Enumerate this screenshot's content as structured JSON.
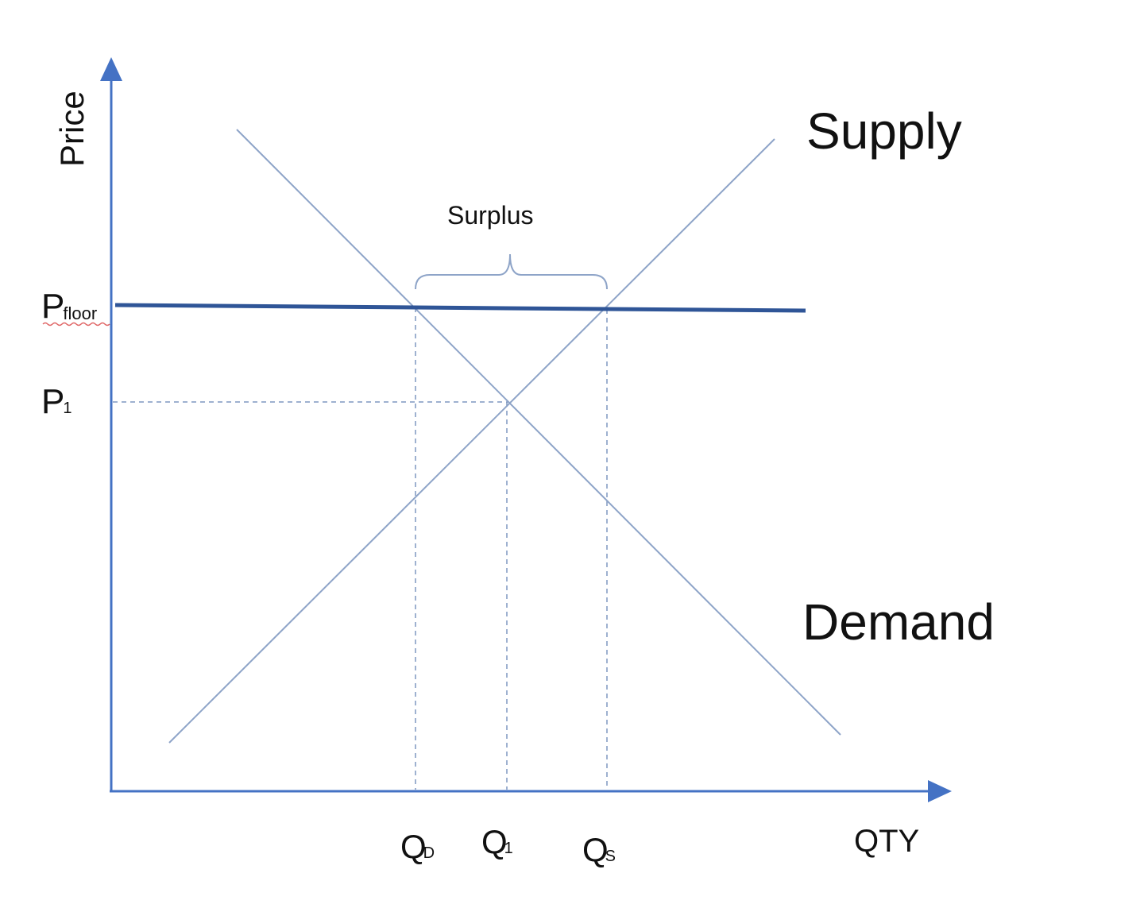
{
  "diagram": {
    "type": "supply-demand-price-floor",
    "colors": {
      "axis": "#4472C4",
      "curve": "#8EA4C8",
      "floor_line": "#2F5597",
      "guide": "#7F97C0",
      "bracket": "#8EA4C8",
      "text": "#111111",
      "underline": "#E06666"
    },
    "labels": {
      "y_axis": "Price",
      "x_axis": "QTY",
      "supply": "Supply",
      "demand": "Demand",
      "surplus": "Surplus",
      "p_floor_main": "P",
      "p_floor_sub": "floor",
      "p1_main": "P",
      "p1_sub": "1",
      "qd_main": "Q",
      "qd_sub": "D",
      "q1_main": "Q",
      "q1_sub": "1",
      "qs_main": "Q",
      "qs_sub": "S"
    }
  }
}
